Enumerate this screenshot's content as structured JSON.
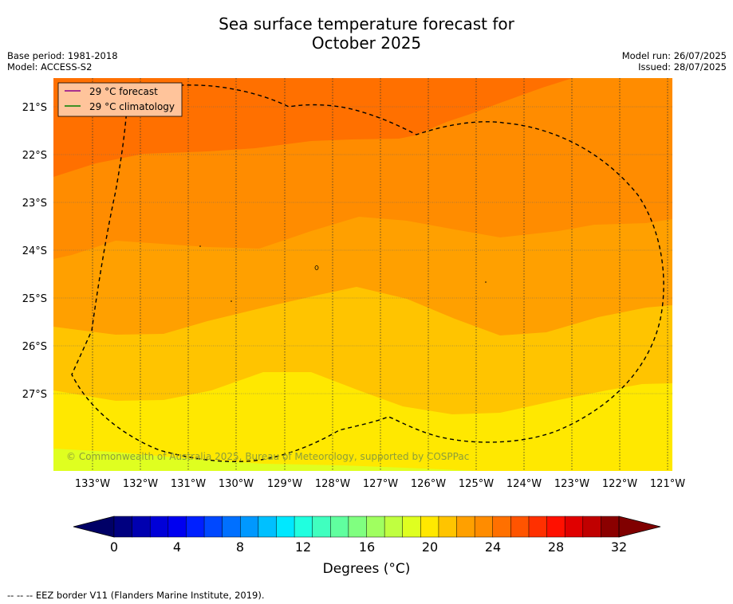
{
  "title_line1": "Sea surface temperature forecast for",
  "title_line2": "October 2025",
  "base_period": "Base period: 1981-2018",
  "model": "Model: ACCESS-S2",
  "model_run": "Model run: 26/07/2025",
  "issued": "Issued: 28/07/2025",
  "legend": {
    "forecast_label": "29 °C  forecast",
    "forecast_color": "#8b008b",
    "climatology_label": "29 °C  climatology",
    "climatology_color": "#008000"
  },
  "latitude_labels": [
    "21°S",
    "22°S",
    "23°S",
    "24°S",
    "25°S",
    "26°S",
    "27°S"
  ],
  "longitude_labels": [
    "133°W",
    "132°W",
    "131°W",
    "130°W",
    "129°W",
    "128°W",
    "127°W",
    "126°W",
    "125°W",
    "124°W",
    "123°W",
    "122°W",
    "121°W"
  ],
  "copyright": "© Commonwealth of Australia 2025, Bureau of Meteorology, supported by COSPPac",
  "colorbar": {
    "ticks": [
      "0",
      "4",
      "8",
      "12",
      "16",
      "20",
      "24",
      "28",
      "32"
    ],
    "label": "Degrees (°C)",
    "colors": [
      "#000080",
      "#0000b0",
      "#0000d8",
      "#0000f0",
      "#0020ff",
      "#0048ff",
      "#0070ff",
      "#0098ff",
      "#00c0ff",
      "#00e8ff",
      "#20ffdf",
      "#40ffbf",
      "#60ff9f",
      "#80ff80",
      "#a0ff60",
      "#c0ff40",
      "#dfff20",
      "#ffe800",
      "#ffc400",
      "#ffa000",
      "#ff8c00",
      "#ff7000",
      "#ff5400",
      "#ff3000",
      "#ff1000",
      "#e00000",
      "#c00000",
      "#8b0000"
    ],
    "under_color": "#000066",
    "over_color": "#800000"
  },
  "footnote": "--  --  -- EEZ border V11 (Flanders Marine Institute, 2019)."
}
